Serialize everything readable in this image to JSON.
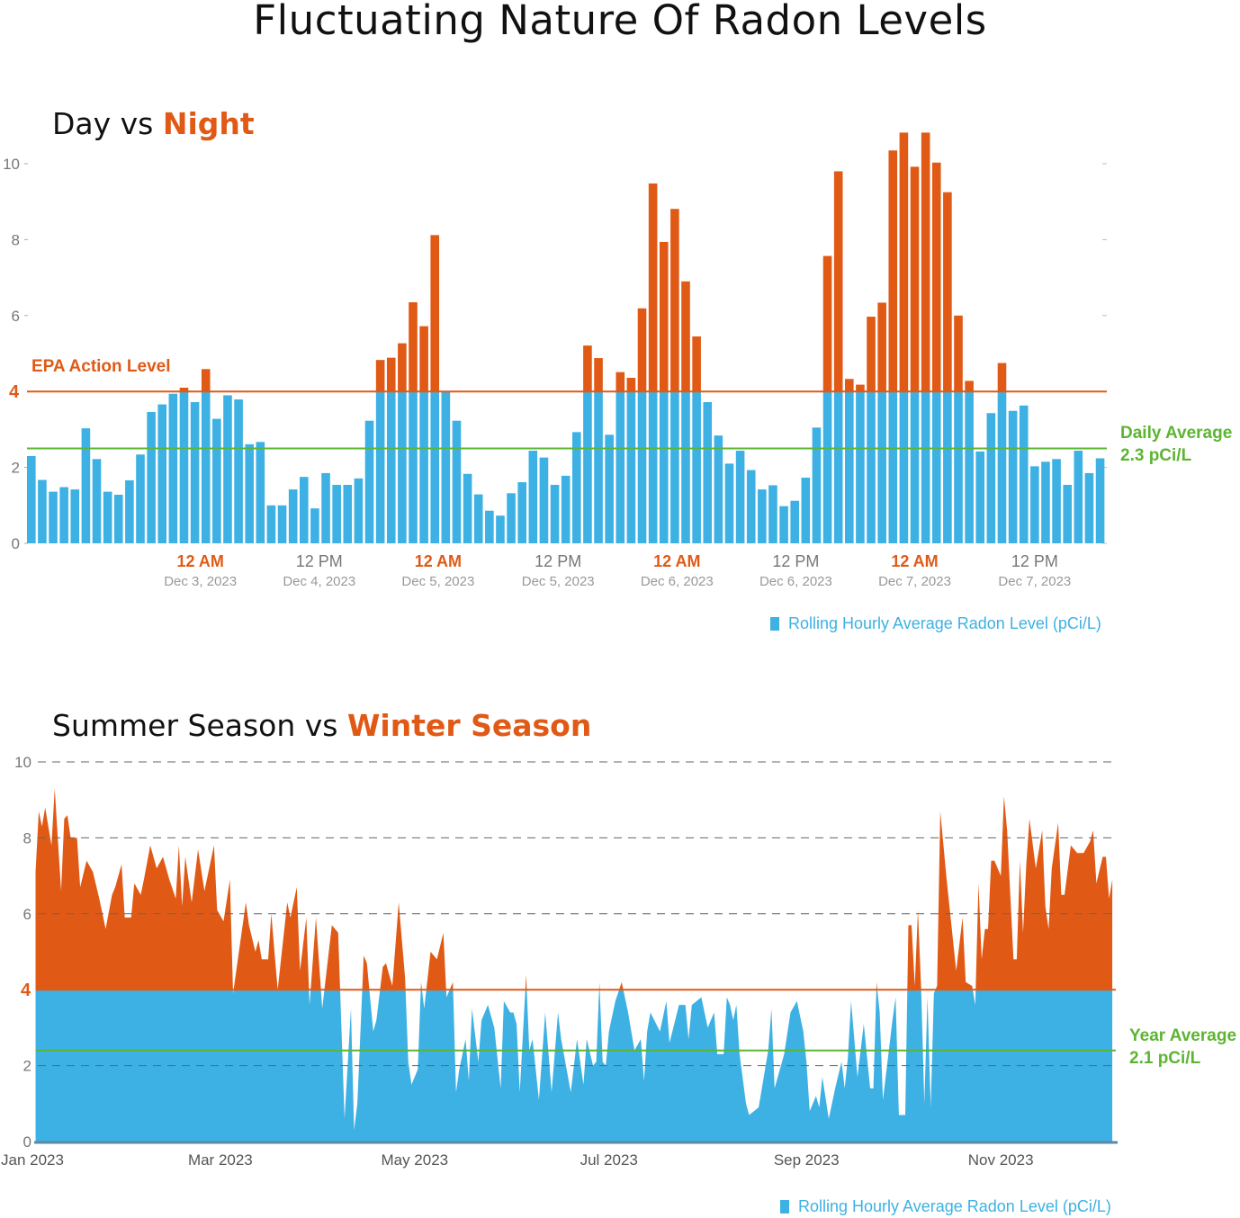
{
  "title": "Fluctuating Nature Of Radon Levels",
  "colors": {
    "below": "#3db1e3",
    "above": "#e05a16",
    "average": "#5cb531",
    "axis_text": "#777777"
  },
  "chart_data": [
    {
      "type": "bar",
      "title_parts": [
        "Day vs ",
        "Night"
      ],
      "ylim": [
        0,
        10
      ],
      "yticks": [
        "0",
        "2",
        "4",
        "6",
        "8",
        "10"
      ],
      "threshold": {
        "value": 4,
        "label": "EPA Action Level",
        "tick_label": "4"
      },
      "average": {
        "line_value": 2.5,
        "label_line1": "Daily Average",
        "label_line2": "2.3 pCi/L"
      },
      "legend": "Rolling Hourly Average Radon Level (pCi/L)",
      "grid": false,
      "values": [
        2.3,
        1.67,
        1.36,
        1.48,
        1.42,
        3.03,
        2.22,
        1.36,
        1.28,
        1.66,
        2.34,
        3.46,
        3.66,
        3.94,
        4.1,
        3.72,
        4.59,
        3.28,
        3.9,
        3.79,
        2.61,
        2.67,
        1.0,
        1.0,
        1.42,
        1.75,
        0.92,
        1.85,
        1.54,
        1.54,
        1.71,
        3.23,
        4.83,
        4.89,
        5.27,
        6.35,
        5.72,
        8.12,
        4.0,
        3.23,
        1.83,
        1.29,
        0.86,
        0.73,
        1.32,
        1.61,
        2.44,
        2.26,
        1.54,
        1.78,
        2.93,
        5.21,
        4.88,
        2.86,
        4.51,
        4.36,
        6.19,
        9.48,
        7.94,
        8.81,
        6.9,
        5.45,
        3.72,
        2.84,
        2.1,
        2.44,
        1.93,
        1.42,
        1.53,
        0.98,
        1.12,
        1.73,
        3.05,
        7.57,
        9.8,
        4.33,
        4.18,
        5.97,
        6.34,
        10.35,
        10.82,
        9.92,
        10.82,
        10.03,
        9.25,
        6.0,
        4.28,
        2.42,
        3.43,
        4.75,
        3.49,
        3.63,
        2.03,
        2.15,
        2.22,
        1.54,
        2.44,
        1.85,
        2.24
      ],
      "xticks": [
        {
          "hour_index": 15.5,
          "time": "12 AM",
          "date": "Dec 3, 2023",
          "night": true
        },
        {
          "hour_index": 26.4,
          "time": "12 PM",
          "date": "Dec 4, 2023",
          "night": false
        },
        {
          "hour_index": 37.3,
          "time": "12 AM",
          "date": "Dec 5, 2023",
          "night": true
        },
        {
          "hour_index": 48.3,
          "time": "12 PM",
          "date": "Dec 5, 2023",
          "night": false
        },
        {
          "hour_index": 59.2,
          "time": "12 AM",
          "date": "Dec 6, 2023",
          "night": true
        },
        {
          "hour_index": 70.1,
          "time": "12 PM",
          "date": "Dec 6, 2023",
          "night": false
        },
        {
          "hour_index": 81.0,
          "time": "12 AM",
          "date": "Dec 7, 2023",
          "night": true
        },
        {
          "hour_index": 92.0,
          "time": "12 PM",
          "date": "Dec 7, 2023",
          "night": false
        }
      ]
    },
    {
      "type": "area",
      "title_parts": [
        "Summer Season vs ",
        "Winter Season"
      ],
      "ylim": [
        0,
        10
      ],
      "yticks": [
        "0",
        "2",
        "4",
        "6",
        "8",
        "10"
      ],
      "grid": true,
      "threshold": {
        "value": 4,
        "tick_label": "4"
      },
      "average": {
        "line_value": 2.4,
        "label_line1": "Year Average",
        "label_line2": "2.1 pCi/L"
      },
      "legend": "Rolling Hourly Average Radon Level (pCi/L)",
      "xticks": [
        {
          "date": "2023-01-01",
          "label": "Jan 2023"
        },
        {
          "date": "2023-03-01",
          "label": "Mar 2023"
        },
        {
          "date": "2023-05-01",
          "label": "May 2023"
        },
        {
          "date": "2023-07-01",
          "label": "Jul 2023"
        },
        {
          "date": "2023-09-01",
          "label": "Sep 2023"
        },
        {
          "date": "2023-11-01",
          "label": "Nov 2023"
        }
      ],
      "points": [
        [
          "2023-01-02",
          7.1
        ],
        [
          "2023-01-03",
          8.7
        ],
        [
          "2023-01-04",
          8.3
        ],
        [
          "2023-01-05",
          8.8
        ],
        [
          "2023-01-07",
          7.8
        ],
        [
          "2023-01-08",
          9.3
        ],
        [
          "2023-01-10",
          6.6
        ],
        [
          "2023-01-11",
          8.5
        ],
        [
          "2023-01-12",
          8.6
        ],
        [
          "2023-01-13",
          8.0
        ],
        [
          "2023-01-15",
          8.0
        ],
        [
          "2023-01-16",
          6.7
        ],
        [
          "2023-01-18",
          7.4
        ],
        [
          "2023-01-20",
          7.1
        ],
        [
          "2023-01-22",
          6.4
        ],
        [
          "2023-01-23",
          6.0
        ],
        [
          "2023-01-24",
          5.6
        ],
        [
          "2023-01-26",
          6.5
        ],
        [
          "2023-01-27",
          6.7
        ],
        [
          "2023-01-29",
          7.3
        ],
        [
          "2023-01-30",
          5.9
        ],
        [
          "2023-02-01",
          5.9
        ],
        [
          "2023-02-02",
          6.8
        ],
        [
          "2023-02-04",
          6.5
        ],
        [
          "2023-02-05",
          6.9
        ],
        [
          "2023-02-07",
          7.8
        ],
        [
          "2023-02-09",
          7.2
        ],
        [
          "2023-02-11",
          7.5
        ],
        [
          "2023-02-13",
          6.9
        ],
        [
          "2023-02-15",
          6.4
        ],
        [
          "2023-02-16",
          7.8
        ],
        [
          "2023-02-17",
          6.2
        ],
        [
          "2023-02-18",
          7.5
        ],
        [
          "2023-02-20",
          6.3
        ],
        [
          "2023-02-22",
          7.7
        ],
        [
          "2023-02-24",
          6.6
        ],
        [
          "2023-02-27",
          7.8
        ],
        [
          "2023-02-28",
          6.1
        ],
        [
          "2023-03-02",
          5.8
        ],
        [
          "2023-03-04",
          6.9
        ],
        [
          "2023-03-05",
          3.9
        ],
        [
          "2023-03-07",
          5.1
        ],
        [
          "2023-03-09",
          6.3
        ],
        [
          "2023-03-10",
          5.7
        ],
        [
          "2023-03-12",
          5.0
        ],
        [
          "2023-03-13",
          5.3
        ],
        [
          "2023-03-14",
          4.8
        ],
        [
          "2023-03-16",
          4.8
        ],
        [
          "2023-03-17",
          6.0
        ],
        [
          "2023-03-18",
          5.0
        ],
        [
          "2023-03-19",
          4.0
        ],
        [
          "2023-03-22",
          6.3
        ],
        [
          "2023-03-23",
          5.9
        ],
        [
          "2023-03-25",
          6.7
        ],
        [
          "2023-03-26",
          4.5
        ],
        [
          "2023-03-28",
          5.9
        ],
        [
          "2023-03-29",
          3.6
        ],
        [
          "2023-03-31",
          5.9
        ],
        [
          "2023-04-02",
          3.5
        ],
        [
          "2023-04-05",
          5.7
        ],
        [
          "2023-04-07",
          5.5
        ],
        [
          "2023-04-09",
          0.6
        ],
        [
          "2023-04-11",
          3.5
        ],
        [
          "2023-04-12",
          0.3
        ],
        [
          "2023-04-13",
          1.0
        ],
        [
          "2023-04-15",
          4.9
        ],
        [
          "2023-04-16",
          4.7
        ],
        [
          "2023-04-18",
          2.9
        ],
        [
          "2023-04-19",
          3.2
        ],
        [
          "2023-04-21",
          4.6
        ],
        [
          "2023-04-22",
          4.7
        ],
        [
          "2023-04-24",
          4.1
        ],
        [
          "2023-04-26",
          6.3
        ],
        [
          "2023-04-28",
          4.3
        ],
        [
          "2023-04-29",
          2.1
        ],
        [
          "2023-04-30",
          1.5
        ],
        [
          "2023-05-02",
          1.9
        ],
        [
          "2023-05-03",
          4.2
        ],
        [
          "2023-05-04",
          3.5
        ],
        [
          "2023-05-06",
          5.0
        ],
        [
          "2023-05-07",
          4.9
        ],
        [
          "2023-05-08",
          4.8
        ],
        [
          "2023-05-10",
          5.5
        ],
        [
          "2023-05-11",
          3.8
        ],
        [
          "2023-05-13",
          4.2
        ],
        [
          "2023-05-14",
          1.3
        ],
        [
          "2023-05-15",
          1.9
        ],
        [
          "2023-05-17",
          2.7
        ],
        [
          "2023-05-18",
          1.6
        ],
        [
          "2023-05-19",
          3.5
        ],
        [
          "2023-05-21",
          2.1
        ],
        [
          "2023-05-22",
          3.2
        ],
        [
          "2023-05-24",
          3.6
        ],
        [
          "2023-05-26",
          3.0
        ],
        [
          "2023-05-28",
          1.4
        ],
        [
          "2023-05-29",
          3.7
        ],
        [
          "2023-05-31",
          3.4
        ],
        [
          "2023-06-01",
          3.4
        ],
        [
          "2023-06-02",
          3.1
        ],
        [
          "2023-06-03",
          1.3
        ],
        [
          "2023-06-05",
          4.4
        ],
        [
          "2023-06-06",
          2.4
        ],
        [
          "2023-06-07",
          2.7
        ],
        [
          "2023-06-09",
          1.1
        ],
        [
          "2023-06-11",
          3.4
        ],
        [
          "2023-06-13",
          1.3
        ],
        [
          "2023-06-15",
          3.4
        ],
        [
          "2023-06-16",
          2.7
        ],
        [
          "2023-06-19",
          1.3
        ],
        [
          "2023-06-21",
          2.7
        ],
        [
          "2023-06-23",
          1.5
        ],
        [
          "2023-06-24",
          2.7
        ],
        [
          "2023-06-26",
          2.0
        ],
        [
          "2023-06-27",
          2.1
        ],
        [
          "2023-06-28",
          4.2
        ],
        [
          "2023-06-29",
          2.1
        ],
        [
          "2023-06-30",
          2.0
        ],
        [
          "2023-07-01",
          2.9
        ],
        [
          "2023-07-03",
          3.7
        ],
        [
          "2023-07-05",
          4.2
        ],
        [
          "2023-07-07",
          3.4
        ],
        [
          "2023-07-09",
          2.4
        ],
        [
          "2023-07-11",
          2.7
        ],
        [
          "2023-07-12",
          1.6
        ],
        [
          "2023-07-13",
          2.9
        ],
        [
          "2023-07-14",
          3.4
        ],
        [
          "2023-07-17",
          2.9
        ],
        [
          "2023-07-19",
          3.7
        ],
        [
          "2023-07-20",
          2.6
        ],
        [
          "2023-07-23",
          3.6
        ],
        [
          "2023-07-25",
          3.6
        ],
        [
          "2023-07-26",
          2.7
        ],
        [
          "2023-07-27",
          3.6
        ],
        [
          "2023-07-30",
          3.8
        ],
        [
          "2023-08-01",
          3.0
        ],
        [
          "2023-08-03",
          3.4
        ],
        [
          "2023-08-04",
          2.3
        ],
        [
          "2023-08-06",
          2.3
        ],
        [
          "2023-08-07",
          3.8
        ],
        [
          "2023-08-08",
          3.6
        ],
        [
          "2023-08-09",
          3.2
        ],
        [
          "2023-08-10",
          3.6
        ],
        [
          "2023-08-11",
          2.3
        ],
        [
          "2023-08-13",
          1.0
        ],
        [
          "2023-08-14",
          0.7
        ],
        [
          "2023-08-17",
          0.9
        ],
        [
          "2023-08-20",
          2.4
        ],
        [
          "2023-08-21",
          3.5
        ],
        [
          "2023-08-22",
          1.4
        ],
        [
          "2023-08-25",
          2.3
        ],
        [
          "2023-08-27",
          3.4
        ],
        [
          "2023-08-29",
          3.7
        ],
        [
          "2023-08-31",
          2.9
        ],
        [
          "2023-09-01",
          2.1
        ],
        [
          "2023-09-02",
          0.8
        ],
        [
          "2023-09-04",
          1.2
        ],
        [
          "2023-09-05",
          0.9
        ],
        [
          "2023-09-06",
          1.7
        ],
        [
          "2023-09-08",
          0.6
        ],
        [
          "2023-09-10",
          1.4
        ],
        [
          "2023-09-12",
          2.1
        ],
        [
          "2023-09-13",
          1.4
        ],
        [
          "2023-09-14",
          2.2
        ],
        [
          "2023-09-15",
          3.7
        ],
        [
          "2023-09-17",
          1.7
        ],
        [
          "2023-09-19",
          3.1
        ],
        [
          "2023-09-21",
          1.4
        ],
        [
          "2023-09-22",
          1.4
        ],
        [
          "2023-09-23",
          4.2
        ],
        [
          "2023-09-24",
          3.4
        ],
        [
          "2023-09-25",
          1.1
        ],
        [
          "2023-09-28",
          3.2
        ],
        [
          "2023-09-29",
          3.8
        ],
        [
          "2023-09-30",
          0.7
        ],
        [
          "2023-10-02",
          0.7
        ],
        [
          "2023-10-03",
          5.7
        ],
        [
          "2023-10-04",
          5.7
        ],
        [
          "2023-10-05",
          4.1
        ],
        [
          "2023-10-06",
          6.1
        ],
        [
          "2023-10-07",
          4.0
        ],
        [
          "2023-10-08",
          1.0
        ],
        [
          "2023-10-09",
          3.8
        ],
        [
          "2023-10-10",
          0.9
        ],
        [
          "2023-10-11",
          3.9
        ],
        [
          "2023-10-12",
          4.1
        ],
        [
          "2023-10-13",
          8.7
        ],
        [
          "2023-10-15",
          6.9
        ],
        [
          "2023-10-18",
          4.5
        ],
        [
          "2023-10-20",
          5.9
        ],
        [
          "2023-10-21",
          4.2
        ],
        [
          "2023-10-23",
          4.1
        ],
        [
          "2023-10-24",
          3.6
        ],
        [
          "2023-10-25",
          6.8
        ],
        [
          "2023-10-26",
          4.8
        ],
        [
          "2023-10-27",
          5.6
        ],
        [
          "2023-10-28",
          5.6
        ],
        [
          "2023-10-29",
          7.4
        ],
        [
          "2023-10-30",
          7.4
        ],
        [
          "2023-11-01",
          7.0
        ],
        [
          "2023-11-02",
          9.1
        ],
        [
          "2023-11-03",
          8.2
        ],
        [
          "2023-11-05",
          4.8
        ],
        [
          "2023-11-06",
          4.8
        ],
        [
          "2023-11-07",
          7.4
        ],
        [
          "2023-11-08",
          5.5
        ],
        [
          "2023-11-09",
          7.3
        ],
        [
          "2023-11-10",
          8.5
        ],
        [
          "2023-11-12",
          7.2
        ],
        [
          "2023-11-14",
          8.2
        ],
        [
          "2023-11-15",
          6.2
        ],
        [
          "2023-11-16",
          5.6
        ],
        [
          "2023-11-17",
          7.2
        ],
        [
          "2023-11-19",
          8.4
        ],
        [
          "2023-11-20",
          6.5
        ],
        [
          "2023-11-21",
          6.5
        ],
        [
          "2023-11-23",
          7.8
        ],
        [
          "2023-11-25",
          7.6
        ],
        [
          "2023-11-27",
          7.6
        ],
        [
          "2023-11-29",
          7.9
        ],
        [
          "2023-11-30",
          8.2
        ],
        [
          "2023-12-01",
          6.8
        ],
        [
          "2023-12-03",
          7.5
        ],
        [
          "2023-12-04",
          7.5
        ],
        [
          "2023-12-05",
          6.4
        ],
        [
          "2023-12-06",
          6.9
        ]
      ]
    }
  ]
}
